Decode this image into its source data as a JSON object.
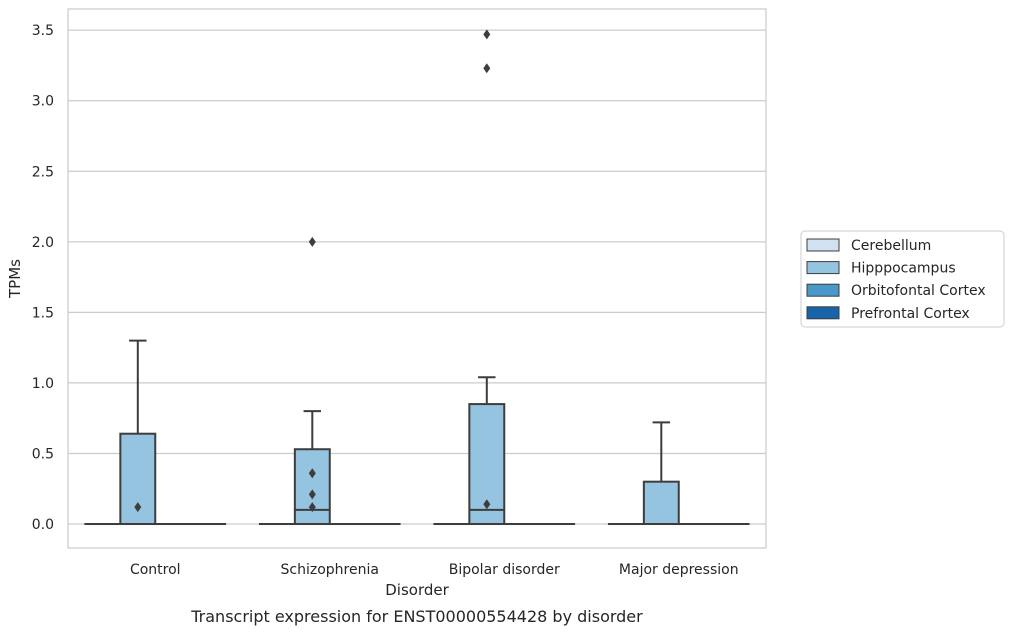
{
  "chart_data": {
    "type": "box",
    "title": "",
    "caption": "Transcript expression for ENST00000554428 by disorder",
    "xlabel": "Disorder",
    "ylabel": "TPMs",
    "ylim": [
      -0.17,
      3.65
    ],
    "yticks": [
      0.0,
      0.5,
      1.0,
      1.5,
      2.0,
      2.5,
      3.0,
      3.5
    ],
    "ytick_labels": [
      "0.0",
      "0.5",
      "1.0",
      "1.5",
      "2.0",
      "2.5",
      "3.0",
      "3.5"
    ],
    "grid": "horizontal",
    "legend_position": "right",
    "categories": [
      "Control",
      "Schizophrenia",
      "Bipolar disorder",
      "Major depression"
    ],
    "series": [
      {
        "name": "Cerebellum",
        "color": "#d0e1f2",
        "boxes": [
          {
            "q1": 0,
            "median": 0,
            "q3": 0,
            "whisker_low": 0,
            "whisker_high": 0,
            "outliers": []
          },
          {
            "q1": 0,
            "median": 0,
            "q3": 0,
            "whisker_low": 0,
            "whisker_high": 0,
            "outliers": []
          },
          {
            "q1": 0,
            "median": 0,
            "q3": 0,
            "whisker_low": 0,
            "whisker_high": 0,
            "outliers": []
          },
          {
            "q1": 0,
            "median": 0,
            "q3": 0,
            "whisker_low": 0,
            "whisker_high": 0,
            "outliers": []
          }
        ]
      },
      {
        "name": "Hipppocampus",
        "color": "#94c4df",
        "boxes": [
          {
            "q1": 0,
            "median": 0,
            "q3": 0.64,
            "whisker_low": 0,
            "whisker_high": 1.3,
            "outliers": [
              0.12
            ]
          },
          {
            "q1": 0,
            "median": 0.1,
            "q3": 0.53,
            "whisker_low": 0,
            "whisker_high": 0.8,
            "outliers": [
              0.12,
              0.21,
              0.36,
              2.0
            ]
          },
          {
            "q1": 0,
            "median": 0.1,
            "q3": 0.85,
            "whisker_low": 0,
            "whisker_high": 1.04,
            "outliers": [
              0.14,
              3.23,
              3.47
            ]
          },
          {
            "q1": 0,
            "median": 0,
            "q3": 0.3,
            "whisker_low": 0,
            "whisker_high": 0.72,
            "outliers": []
          }
        ]
      },
      {
        "name": "Orbitofontal Cortex",
        "color": "#4a98c9",
        "boxes": [
          {
            "q1": 0,
            "median": 0,
            "q3": 0,
            "whisker_low": 0,
            "whisker_high": 0,
            "outliers": []
          },
          {
            "q1": 0,
            "median": 0,
            "q3": 0,
            "whisker_low": 0,
            "whisker_high": 0,
            "outliers": []
          },
          {
            "q1": 0,
            "median": 0,
            "q3": 0,
            "whisker_low": 0,
            "whisker_high": 0,
            "outliers": []
          },
          {
            "q1": 0,
            "median": 0,
            "q3": 0,
            "whisker_low": 0,
            "whisker_high": 0,
            "outliers": []
          }
        ]
      },
      {
        "name": "Prefrontal Cortex",
        "color": "#1764ab",
        "boxes": [
          {
            "q1": 0,
            "median": 0,
            "q3": 0,
            "whisker_low": 0,
            "whisker_high": 0,
            "outliers": []
          },
          {
            "q1": 0,
            "median": 0,
            "q3": 0,
            "whisker_low": 0,
            "whisker_high": 0,
            "outliers": []
          },
          {
            "q1": 0,
            "median": 0,
            "q3": 0,
            "whisker_low": 0,
            "whisker_high": 0,
            "outliers": []
          },
          {
            "q1": 0,
            "median": 0,
            "q3": 0,
            "whisker_low": 0,
            "whisker_high": 0,
            "outliers": []
          }
        ]
      }
    ]
  }
}
